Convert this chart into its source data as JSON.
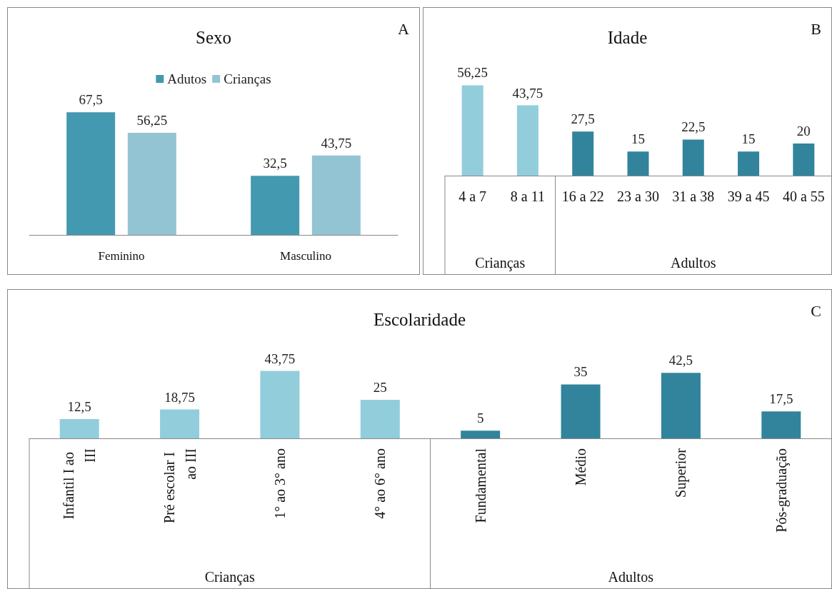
{
  "chart_data": [
    {
      "type": "bar",
      "title": "Sexo",
      "categories": [
        "Feminino",
        "Masculino"
      ],
      "legend": "top",
      "annotations": [
        "A"
      ],
      "series": [
        {
          "name": "Adutos",
          "color": "#4399b0",
          "values": [
            67.5,
            32.5
          ],
          "value_labels": [
            "67,5",
            "32,5"
          ]
        },
        {
          "name": "Crianças",
          "color": "#93c4d4",
          "values": [
            56.25,
            43.75
          ],
          "value_labels": [
            "56,25",
            "43,75"
          ]
        }
      ]
    },
    {
      "type": "bar",
      "title": "Idade",
      "categories": [
        "4 a 7",
        "8 a 11",
        "16 a 22",
        "23 a 30",
        "31 a 38",
        "39 a 45",
        "40 a 55"
      ],
      "annotations": [
        "B",
        "Crianças",
        "Adultos"
      ],
      "values": [
        56.25,
        43.75,
        27.5,
        15,
        22.5,
        15,
        20
      ],
      "value_labels": [
        "56,25",
        "43,75",
        "27,5",
        "15",
        "22,5",
        "15",
        "20"
      ],
      "colors": [
        "#92cddc",
        "#92cddc",
        "#31849b",
        "#31849b",
        "#31849b",
        "#31849b",
        "#31849b"
      ]
    },
    {
      "type": "bar",
      "title": "Escolaridade",
      "categories": [
        "Infantil I ao III",
        "Pré escolar I ao III",
        "1° ao 3° ano",
        "4° ao 6° ano",
        "Fundamental",
        "Médio",
        "Superior",
        "Pós-graduação"
      ],
      "annotations": [
        "C",
        "Crianças",
        "Adultos"
      ],
      "values": [
        12.5,
        18.75,
        43.75,
        25,
        5,
        35,
        42.5,
        17.5
      ],
      "value_labels": [
        "12,5",
        "18,75",
        "43,75",
        "25",
        "5",
        "35",
        "42,5",
        "17,5"
      ],
      "colors": [
        "#92cddc",
        "#92cddc",
        "#92cddc",
        "#92cddc",
        "#31849b",
        "#31849b",
        "#31849b",
        "#31849b"
      ]
    }
  ]
}
